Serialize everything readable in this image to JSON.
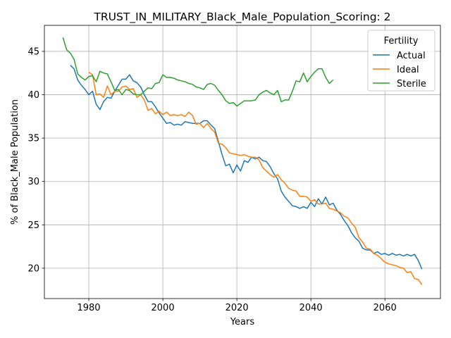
{
  "chart_data": {
    "type": "line",
    "title": "TRUST_IN_MILITARY_Black_Male_Population_Scoring: 2",
    "xlabel": "Years",
    "ylabel": "% of Black_Male Population",
    "xlim": [
      1968,
      2075
    ],
    "ylim": [
      16.5,
      48
    ],
    "xticks": [
      1980,
      2000,
      2020,
      2040,
      2060
    ],
    "yticks": [
      20,
      25,
      30,
      35,
      40,
      45
    ],
    "grid": true,
    "legend": {
      "title": "Fertility",
      "placement": "top-right"
    },
    "series": [
      {
        "name": "Actual",
        "color": "#1f77b4",
        "x": [
          1975,
          1976,
          1977,
          1978,
          1979,
          1980,
          1981,
          1982,
          1983,
          1984,
          1985,
          1986,
          1987,
          1988,
          1989,
          1990,
          1991,
          1992,
          1993,
          1994,
          1995,
          1996,
          1997,
          1998,
          1999,
          2000,
          2001,
          2002,
          2003,
          2004,
          2005,
          2006,
          2007,
          2008,
          2009,
          2010,
          2011,
          2012,
          2013,
          2014,
          2015,
          2016,
          2017,
          2018,
          2019,
          2020,
          2021,
          2022,
          2023,
          2024,
          2025,
          2026,
          2027,
          2028,
          2029,
          2030,
          2031,
          2032,
          2033,
          2034,
          2035,
          2036,
          2037,
          2038,
          2039,
          2040,
          2041,
          2042,
          2043,
          2044,
          2045,
          2046,
          2047,
          2048,
          2049,
          2050,
          2051,
          2052,
          2053,
          2054,
          2055,
          2056,
          2057,
          2058,
          2059,
          2060,
          2061,
          2062,
          2063,
          2064,
          2065,
          2066,
          2067,
          2068,
          2069,
          2070
        ],
        "values": [
          43.4,
          43.0,
          41.7,
          41.1,
          40.6,
          40.0,
          40.4,
          38.9,
          38.3,
          39.2,
          39.7,
          39.6,
          40.4,
          41.1,
          41.8,
          41.8,
          42.3,
          41.6,
          41.4,
          40.9,
          40.0,
          39.2,
          39.2,
          38.6,
          37.9,
          37.3,
          36.7,
          36.8,
          36.5,
          36.6,
          36.5,
          36.9,
          36.8,
          36.7,
          36.7,
          36.7,
          37.0,
          37.0,
          36.5,
          36.1,
          34.6,
          33.1,
          31.8,
          32.0,
          31.0,
          31.9,
          31.2,
          32.4,
          32.2,
          32.8,
          32.6,
          32.8,
          32.4,
          32.3,
          31.7,
          30.9,
          30.3,
          28.9,
          28.2,
          27.7,
          27.2,
          27.1,
          26.9,
          27.1,
          26.9,
          27.6,
          27.1,
          28.0,
          27.4,
          28.2,
          27.3,
          27.5,
          26.7,
          26.2,
          25.5,
          24.9,
          24.1,
          23.5,
          23.1,
          22.3,
          22.1,
          22.1,
          21.7,
          21.9,
          21.6,
          21.7,
          21.5,
          21.7,
          21.5,
          21.6,
          21.4,
          21.6,
          21.4,
          21.6,
          20.9,
          19.9
        ]
      },
      {
        "name": "Ideal",
        "color": "#ff7f0e",
        "x": [
          1980,
          1981,
          1982,
          1983,
          1984,
          1985,
          1986,
          1987,
          1988,
          1989,
          1990,
          1991,
          1992,
          1993,
          1994,
          1995,
          1996,
          1997,
          1998,
          1999,
          2000,
          2001,
          2002,
          2003,
          2004,
          2005,
          2006,
          2007,
          2008,
          2009,
          2010,
          2011,
          2012,
          2013,
          2014,
          2015,
          2016,
          2017,
          2018,
          2019,
          2020,
          2021,
          2022,
          2023,
          2024,
          2025,
          2026,
          2027,
          2028,
          2029,
          2030,
          2031,
          2032,
          2033,
          2034,
          2035,
          2036,
          2037,
          2038,
          2039,
          2040,
          2041,
          2042,
          2043,
          2044,
          2045,
          2046,
          2047,
          2048,
          2049,
          2050,
          2051,
          2052,
          2053,
          2054,
          2055,
          2056,
          2057,
          2058,
          2059,
          2060,
          2061,
          2062,
          2063,
          2064,
          2065,
          2066,
          2067,
          2068,
          2069,
          2070
        ],
        "values": [
          42.6,
          42.3,
          40.0,
          40.1,
          39.7,
          41.0,
          40.0,
          40.4,
          40.4,
          40.9,
          41.0,
          40.6,
          40.7,
          39.7,
          40.0,
          39.4,
          38.2,
          38.4,
          37.8,
          38.1,
          37.7,
          38.0,
          37.6,
          37.7,
          37.6,
          37.7,
          37.5,
          38.0,
          37.6,
          36.6,
          36.7,
          36.2,
          36.7,
          36.1,
          35.7,
          34.4,
          34.3,
          33.9,
          33.3,
          33.2,
          33.1,
          33.0,
          33.1,
          32.9,
          32.8,
          32.8,
          32.5,
          31.6,
          31.2,
          30.8,
          30.5,
          30.8,
          30.2,
          29.8,
          29.2,
          29.0,
          28.9,
          28.3,
          28.3,
          28.2,
          27.7,
          27.9,
          27.4,
          27.4,
          27.5,
          26.9,
          26.8,
          26.6,
          26.4,
          26.0,
          25.8,
          25.2,
          24.7,
          23.5,
          23.0,
          22.3,
          22.2,
          21.7,
          21.5,
          21.1,
          20.7,
          20.5,
          20.4,
          20.3,
          20.1,
          20.0,
          19.5,
          19.6,
          18.8,
          18.7,
          18.1
        ]
      },
      {
        "name": "Sterile",
        "color": "#2ca02c",
        "x": [
          1973,
          1974,
          1975,
          1976,
          1977,
          1978,
          1979,
          1980,
          1981,
          1982,
          1983,
          1984,
          1985,
          1986,
          1987,
          1988,
          1989,
          1990,
          1991,
          1992,
          1993,
          1994,
          1995,
          1996,
          1997,
          1998,
          1999,
          2000,
          2001,
          2002,
          2003,
          2004,
          2005,
          2006,
          2007,
          2008,
          2009,
          2010,
          2011,
          2012,
          2013,
          2014,
          2015,
          2016,
          2017,
          2018,
          2019,
          2020,
          2021,
          2022,
          2023,
          2024,
          2025,
          2026,
          2027,
          2028,
          2029,
          2030,
          2031,
          2032,
          2033,
          2034,
          2035,
          2036,
          2037,
          2038,
          2039,
          2040,
          2041,
          2042,
          2043,
          2044,
          2045,
          2046
        ],
        "values": [
          46.6,
          45.2,
          44.8,
          44.1,
          42.4,
          42.0,
          41.7,
          42.1,
          42.2,
          41.5,
          42.7,
          42.5,
          42.4,
          41.5,
          40.5,
          40.6,
          40.0,
          40.6,
          40.5,
          40.1,
          40.0,
          40.0,
          40.4,
          40.8,
          40.7,
          41.3,
          41.4,
          42.3,
          42.0,
          42.0,
          41.9,
          41.7,
          41.6,
          41.5,
          41.3,
          41.2,
          40.9,
          40.8,
          40.6,
          41.2,
          41.3,
          41.1,
          40.5,
          40.0,
          39.3,
          39.0,
          39.1,
          38.7,
          39.0,
          39.3,
          39.3,
          39.3,
          39.4,
          40.0,
          40.3,
          40.5,
          40.2,
          40.0,
          40.5,
          39.2,
          39.4,
          39.4,
          40.4,
          41.6,
          41.5,
          42.5,
          41.5,
          42.1,
          42.6,
          43.0,
          43.0,
          42.0,
          41.3,
          41.7
        ]
      }
    ]
  }
}
